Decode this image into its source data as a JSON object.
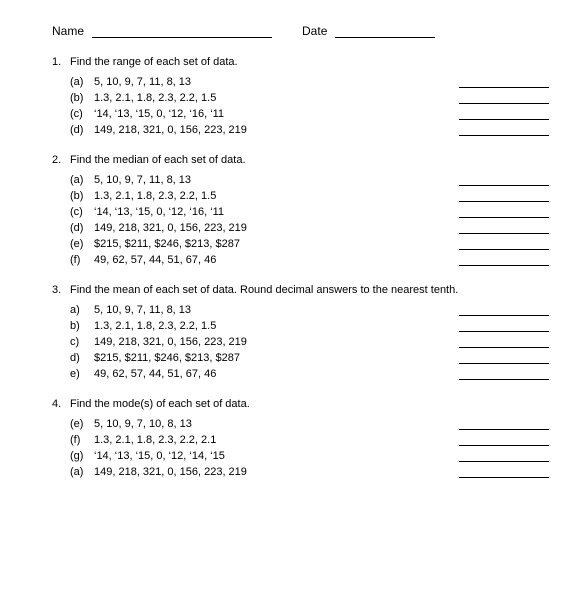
{
  "header": {
    "name_label": "Name",
    "date_label": "Date"
  },
  "questions": [
    {
      "number": "1.",
      "prompt": "Find the range of each set of data.",
      "items": [
        {
          "letter": "(a)",
          "text": "5, 10, 9, 7, 11, 8, 13"
        },
        {
          "letter": "(b)",
          "text": "1.3, 2.1, 1.8, 2.3, 2.2, 1.5"
        },
        {
          "letter": "(c)",
          "text": "‘14, ‘13, ‘15, 0, ‘12, ‘16, ‘11"
        },
        {
          "letter": "(d)",
          "text": "149, 218, 321, 0, 156, 223, 219"
        }
      ]
    },
    {
      "number": "2.",
      "prompt": "Find the median of each set of data.",
      "items": [
        {
          "letter": "(a)",
          "text": "5, 10, 9, 7, 11, 8, 13"
        },
        {
          "letter": "(b)",
          "text": "1.3, 2.1, 1.8, 2.3, 2.2, 1.5"
        },
        {
          "letter": "(c)",
          "text": "‘14, ‘13, ‘15, 0, ‘12, ‘16, ‘11"
        },
        {
          "letter": "(d)",
          "text": "149, 218, 321, 0, 156, 223, 219"
        },
        {
          "letter": "(e)",
          "text": "$215, $211, $246, $213, $287"
        },
        {
          "letter": "(f)",
          "text": "49, 62, 57, 44, 51, 67, 46"
        }
      ]
    },
    {
      "number": "3.",
      "prompt": "Find the mean of each set of data. Round decimal answers to the nearest tenth.",
      "items": [
        {
          "letter": "a)",
          "text": "5, 10, 9, 7, 11, 8, 13"
        },
        {
          "letter": "b)",
          "text": "1.3, 2.1, 1.8, 2.3, 2.2, 1.5"
        },
        {
          "letter": "c)",
          "text": "149, 218, 321, 0, 156, 223, 219"
        },
        {
          "letter": "d)",
          "text": "$215, $211, $246, $213, $287"
        },
        {
          "letter": "e)",
          "text": "49, 62, 57, 44, 51, 67, 46"
        }
      ]
    },
    {
      "number": "4.",
      "prompt": "Find the mode(s) of each set of data.",
      "items": [
        {
          "letter": "(e)",
          "text": "5, 10, 9, 7, 10, 8, 13"
        },
        {
          "letter": "(f)",
          "text": "1.3, 2.1, 1.8, 2.3, 2.2, 2.1"
        },
        {
          "letter": "(g)",
          "text": "‘14, ‘13, ‘15, 0, ‘12, ‘14, ‘15"
        },
        {
          "letter": "(a)",
          "text": "149, 218, 321, 0, 156, 223, 219"
        }
      ]
    }
  ]
}
